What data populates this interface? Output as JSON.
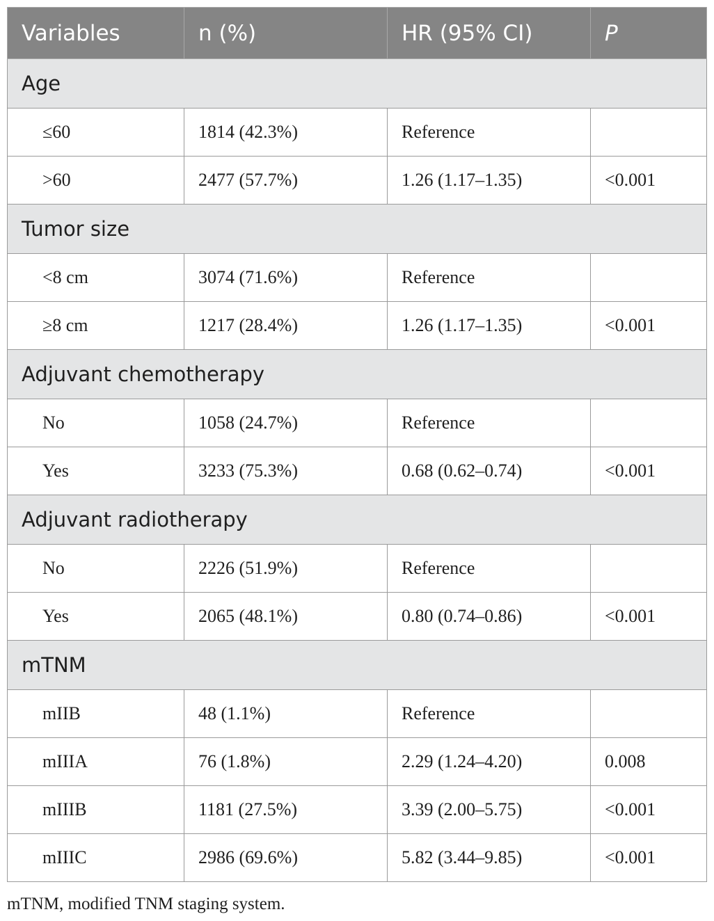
{
  "header": {
    "variables": "Variables",
    "n_pct": "n (%)",
    "hr_ci": "HR (95% CI)",
    "p": "P"
  },
  "groups": [
    {
      "label": "Age",
      "rows": [
        {
          "var": "≤60",
          "n": "1814 (42.3%)",
          "hr": "Reference",
          "p": ""
        },
        {
          "var": ">60",
          "n": "2477 (57.7%)",
          "hr": "1.26 (1.17–1.35)",
          "p": "<0.001"
        }
      ]
    },
    {
      "label": "Tumor size",
      "rows": [
        {
          "var": "<8 cm",
          "n": "3074 (71.6%)",
          "hr": "Reference",
          "p": ""
        },
        {
          "var": "≥8 cm",
          "n": "1217 (28.4%)",
          "hr": "1.26 (1.17–1.35)",
          "p": "<0.001"
        }
      ]
    },
    {
      "label": "Adjuvant chemotherapy",
      "rows": [
        {
          "var": "No",
          "n": "1058 (24.7%)",
          "hr": "Reference",
          "p": ""
        },
        {
          "var": "Yes",
          "n": "3233 (75.3%)",
          "hr": "0.68 (0.62–0.74)",
          "p": "<0.001"
        }
      ]
    },
    {
      "label": "Adjuvant radiotherapy",
      "rows": [
        {
          "var": "No",
          "n": "2226 (51.9%)",
          "hr": "Reference",
          "p": ""
        },
        {
          "var": "Yes",
          "n": "2065 (48.1%)",
          "hr": "0.80 (0.74–0.86)",
          "p": "<0.001"
        }
      ]
    },
    {
      "label": "mTNM",
      "rows": [
        {
          "var": "mIIB",
          "n": "48 (1.1%)",
          "hr": "Reference",
          "p": ""
        },
        {
          "var": "mIIIA",
          "n": "76 (1.8%)",
          "hr": "2.29 (1.24–4.20)",
          "p": "0.008"
        },
        {
          "var": "mIIIB",
          "n": "1181 (27.5%)",
          "hr": "3.39 (2.00–5.75)",
          "p": "<0.001"
        },
        {
          "var": "mIIIC",
          "n": "2986 (69.6%)",
          "hr": "5.82 (3.44–9.85)",
          "p": "<0.001"
        }
      ]
    }
  ],
  "footnote": "mTNM, modified TNM staging system."
}
